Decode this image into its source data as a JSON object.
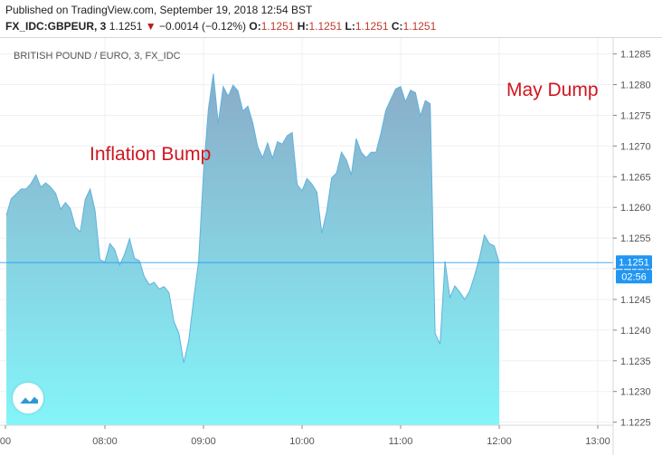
{
  "header": {
    "published": "Published on TradingView.com, September 19, 2018 12:54 BST",
    "symbol": "FX_IDC:GBPEUR, 3",
    "last": "1.1251",
    "arrow": "▼",
    "change": "−0.0014 (−0.12%)",
    "o_label": "O:",
    "o_value": "1.1251",
    "h_label": "H:",
    "h_value": "1.1251",
    "l_label": "L:",
    "l_value": "1.1251",
    "c_label": "C:",
    "c_value": "1.1251"
  },
  "price_label": "1.1251",
  "countdown_label": "02:56",
  "colors": {
    "line": "#5fb3dd",
    "fill_top": "#8aabc8",
    "fill_bottom": "#84f5f9",
    "price_tag": "#2196f3",
    "annotation": "#d0161f",
    "grid": "#eef0f3",
    "axis_text": "#555555"
  },
  "icons": {
    "logo": "tradingview-logo-icon",
    "change": "down-triangle-icon"
  },
  "chart_data": {
    "type": "area",
    "title": "BRITISH POUND / EURO, 3, FX_IDC",
    "xlabel": "",
    "ylabel": "",
    "x_ticks": [
      "00",
      "08:00",
      "09:00",
      "10:00",
      "11:00",
      "12:00",
      "13:00"
    ],
    "y_ticks": [
      "1.1225",
      "1.1230",
      "1.1235",
      "1.1240",
      "1.1245",
      "1.1250",
      "1.1255",
      "1.1260",
      "1.1265",
      "1.1270",
      "1.1275",
      "1.1280",
      "1.1285"
    ],
    "ylim": [
      1.12245,
      1.12876
    ],
    "current_price": 1.1251,
    "grid": true,
    "y_axis_position": "right",
    "x_unit": "minutes since 07:00",
    "series": [
      {
        "values": [
          [
            0,
            1.12587
          ],
          [
            3,
            1.12614
          ],
          [
            6,
            1.12622
          ],
          [
            9,
            1.1263
          ],
          [
            12,
            1.1263
          ],
          [
            15,
            1.12639
          ],
          [
            18,
            1.12653
          ],
          [
            21,
            1.12633
          ],
          [
            24,
            1.1264
          ],
          [
            27,
            1.12633
          ],
          [
            30,
            1.12623
          ],
          [
            33,
            1.12597
          ],
          [
            36,
            1.12608
          ],
          [
            39,
            1.12598
          ],
          [
            42,
            1.12568
          ],
          [
            45,
            1.1256
          ],
          [
            48,
            1.12613
          ],
          [
            51,
            1.1263
          ],
          [
            54,
            1.12595
          ],
          [
            57,
            1.12515
          ],
          [
            60,
            1.12511
          ],
          [
            63,
            1.12541
          ],
          [
            66,
            1.12531
          ],
          [
            69,
            1.12506
          ],
          [
            72,
            1.12524
          ],
          [
            75,
            1.12549
          ],
          [
            78,
            1.12517
          ],
          [
            81,
            1.12513
          ],
          [
            84,
            1.12487
          ],
          [
            87,
            1.12474
          ],
          [
            90,
            1.12478
          ],
          [
            93,
            1.12467
          ],
          [
            96,
            1.12471
          ],
          [
            99,
            1.12461
          ],
          [
            102,
            1.12414
          ],
          [
            105,
            1.12395
          ],
          [
            108,
            1.12347
          ],
          [
            111,
            1.12383
          ],
          [
            114,
            1.1245
          ],
          [
            117,
            1.12512
          ],
          [
            120,
            1.12656
          ],
          [
            123,
            1.1276
          ],
          [
            126,
            1.12818
          ],
          [
            129,
            1.12737
          ],
          [
            132,
            1.12797
          ],
          [
            135,
            1.12781
          ],
          [
            138,
            1.12799
          ],
          [
            141,
            1.1279
          ],
          [
            144,
            1.12757
          ],
          [
            147,
            1.12765
          ],
          [
            150,
            1.12738
          ],
          [
            153,
            1.12699
          ],
          [
            156,
            1.12681
          ],
          [
            159,
            1.12705
          ],
          [
            162,
            1.1268
          ],
          [
            165,
            1.12707
          ],
          [
            168,
            1.12703
          ],
          [
            171,
            1.12717
          ],
          [
            174,
            1.12722
          ],
          [
            177,
            1.12637
          ],
          [
            180,
            1.12627
          ],
          [
            183,
            1.12647
          ],
          [
            186,
            1.12638
          ],
          [
            189,
            1.12625
          ],
          [
            192,
            1.12558
          ],
          [
            195,
            1.12594
          ],
          [
            198,
            1.12648
          ],
          [
            201,
            1.12656
          ],
          [
            204,
            1.1269
          ],
          [
            207,
            1.12677
          ],
          [
            210,
            1.12653
          ],
          [
            213,
            1.12712
          ],
          [
            216,
            1.1269
          ],
          [
            219,
            1.12681
          ],
          [
            222,
            1.1269
          ],
          [
            225,
            1.1269
          ],
          [
            228,
            1.12721
          ],
          [
            231,
            1.12758
          ],
          [
            234,
            1.12776
          ],
          [
            237,
            1.12793
          ],
          [
            240,
            1.12797
          ],
          [
            243,
            1.12772
          ],
          [
            246,
            1.12791
          ],
          [
            249,
            1.12787
          ],
          [
            252,
            1.12749
          ],
          [
            255,
            1.12774
          ],
          [
            258,
            1.12769
          ],
          [
            261,
            1.12395
          ],
          [
            264,
            1.12377
          ],
          [
            267,
            1.12512
          ],
          [
            270,
            1.12453
          ],
          [
            273,
            1.12472
          ],
          [
            276,
            1.12462
          ],
          [
            279,
            1.1245
          ],
          [
            282,
            1.12464
          ],
          [
            285,
            1.12489
          ],
          [
            288,
            1.12518
          ],
          [
            291,
            1.12555
          ],
          [
            294,
            1.12541
          ],
          [
            297,
            1.12537
          ],
          [
            300,
            1.1251
          ]
        ]
      }
    ],
    "annotations": [
      {
        "text": "Inflation Bump"
      },
      {
        "text": "May Dump"
      }
    ]
  }
}
